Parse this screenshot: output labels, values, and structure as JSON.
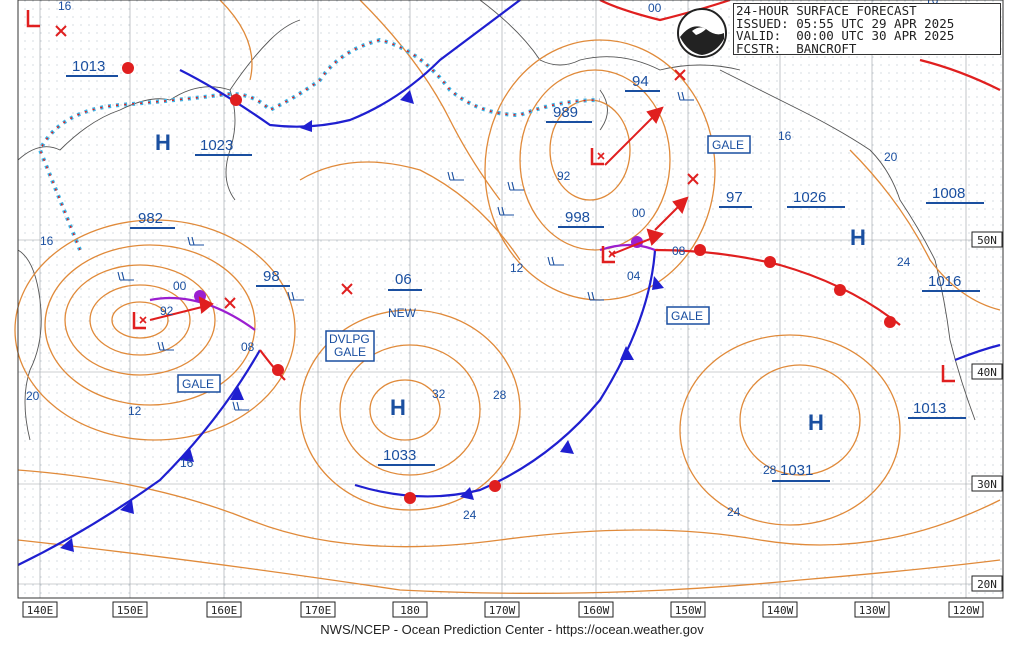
{
  "header": {
    "line1": "24-HOUR SURFACE FORECAST",
    "line2": "ISSUED: 05:55 UTC 29 APR 2025",
    "line3": "VALID:  00:00 UTC 30 APR 2025",
    "line4": "FCSTR:  BANCROFT"
  },
  "footer": "NWS/NCEP - Ocean Prediction Center - https://ocean.weather.gov",
  "colors": {
    "isobar": "#e08a3a",
    "cold_front": "#1f1fd0",
    "warm_front": "#e01f1f",
    "occluded": "#9b1fd0",
    "label": "#1a4fa0",
    "ice_edge": "#3fb4e6"
  },
  "lon_labels": [
    "140E",
    "150E",
    "160E",
    "170E",
    "180",
    "170W",
    "160W",
    "150W",
    "140W",
    "130W",
    "120W"
  ],
  "lat_labels": [
    "50N",
    "40N",
    "30N",
    "20N"
  ],
  "highs": [
    {
      "label": "H",
      "value": "1023"
    },
    {
      "label": "H",
      "value": "1033"
    },
    {
      "label": "H",
      "value": "1031"
    },
    {
      "label": "H",
      "value": "1026"
    }
  ],
  "lows": [
    {
      "label": "L",
      "value": "982"
    },
    {
      "label": "L",
      "value": "989"
    },
    {
      "label": "L",
      "value": "998"
    },
    {
      "label": "L",
      "value": "1013"
    }
  ],
  "pressure_labels": [
    "1013",
    "94",
    "1008",
    "1016",
    "97",
    "98",
    "06",
    "00",
    "16"
  ],
  "isobar_values": [
    "16",
    "16",
    "16",
    "00",
    "92",
    "12",
    "12",
    "92",
    "04",
    "08",
    "00",
    "08",
    "16",
    "20",
    "24",
    "24",
    "24",
    "28",
    "28",
    "32",
    "20"
  ],
  "warnings": [
    "GALE",
    "GALE",
    "GALE",
    "DVLPG",
    "GALE",
    "NEW"
  ],
  "icons": [
    "noaa-logo-icon"
  ]
}
